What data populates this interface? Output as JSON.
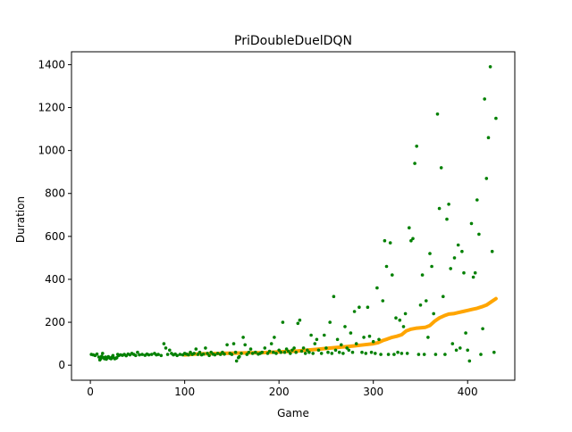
{
  "chart_data": {
    "type": "scatter",
    "title": "PriDoubleDuelDQN",
    "xlabel": "Game",
    "ylabel": "Duration",
    "xlim": [
      -20,
      450
    ],
    "ylim": [
      -70,
      1460
    ],
    "xticks": [
      0,
      100,
      200,
      300,
      400
    ],
    "yticks": [
      0,
      200,
      400,
      600,
      800,
      1000,
      1200,
      1400
    ],
    "grid": false,
    "legend": "none",
    "colors": {
      "durations": "#008000",
      "moving_average": "#ffa500"
    },
    "series": [
      {
        "kind": "points",
        "points": [
          [
            1,
            50
          ],
          [
            3,
            48
          ],
          [
            5,
            45
          ],
          [
            7,
            52
          ],
          [
            9,
            38
          ],
          [
            10,
            25
          ],
          [
            11,
            30
          ],
          [
            12,
            42
          ],
          [
            13,
            55
          ],
          [
            14,
            35
          ],
          [
            15,
            30
          ],
          [
            16,
            38
          ],
          [
            17,
            28
          ],
          [
            18,
            34
          ],
          [
            19,
            40
          ],
          [
            20,
            36
          ],
          [
            21,
            32
          ],
          [
            22,
            30
          ],
          [
            23,
            38
          ],
          [
            24,
            45
          ],
          [
            25,
            34
          ],
          [
            26,
            30
          ],
          [
            27,
            32
          ],
          [
            28,
            35
          ],
          [
            29,
            50
          ],
          [
            30,
            45
          ],
          [
            32,
            48
          ],
          [
            34,
            46
          ],
          [
            36,
            50
          ],
          [
            38,
            44
          ],
          [
            40,
            52
          ],
          [
            42,
            48
          ],
          [
            44,
            55
          ],
          [
            46,
            50
          ],
          [
            48,
            45
          ],
          [
            50,
            60
          ],
          [
            52,
            48
          ],
          [
            55,
            50
          ],
          [
            58,
            46
          ],
          [
            60,
            52
          ],
          [
            62,
            48
          ],
          [
            65,
            50
          ],
          [
            68,
            55
          ],
          [
            70,
            48
          ],
          [
            72,
            50
          ],
          [
            75,
            45
          ],
          [
            78,
            100
          ],
          [
            80,
            80
          ],
          [
            82,
            50
          ],
          [
            84,
            70
          ],
          [
            86,
            55
          ],
          [
            88,
            48
          ],
          [
            90,
            52
          ],
          [
            92,
            45
          ],
          [
            95,
            50
          ],
          [
            98,
            48
          ],
          [
            100,
            55
          ],
          [
            102,
            52
          ],
          [
            104,
            48
          ],
          [
            106,
            60
          ],
          [
            108,
            50
          ],
          [
            110,
            55
          ],
          [
            112,
            75
          ],
          [
            114,
            50
          ],
          [
            116,
            60
          ],
          [
            118,
            48
          ],
          [
            120,
            52
          ],
          [
            122,
            80
          ],
          [
            124,
            55
          ],
          [
            126,
            45
          ],
          [
            128,
            60
          ],
          [
            130,
            52
          ],
          [
            132,
            48
          ],
          [
            135,
            55
          ],
          [
            138,
            50
          ],
          [
            140,
            60
          ],
          [
            142,
            52
          ],
          [
            145,
            95
          ],
          [
            148,
            55
          ],
          [
            150,
            50
          ],
          [
            152,
            100
          ],
          [
            154,
            60
          ],
          [
            155,
            20
          ],
          [
            157,
            35
          ],
          [
            158,
            40
          ],
          [
            160,
            55
          ],
          [
            162,
            130
          ],
          [
            164,
            95
          ],
          [
            166,
            50
          ],
          [
            168,
            60
          ],
          [
            170,
            75
          ],
          [
            172,
            55
          ],
          [
            175,
            60
          ],
          [
            178,
            52
          ],
          [
            180,
            55
          ],
          [
            182,
            60
          ],
          [
            185,
            80
          ],
          [
            188,
            55
          ],
          [
            190,
            65
          ],
          [
            192,
            100
          ],
          [
            194,
            60
          ],
          [
            195,
            130
          ],
          [
            197,
            55
          ],
          [
            200,
            70
          ],
          [
            202,
            60
          ],
          [
            204,
            200
          ],
          [
            206,
            60
          ],
          [
            208,
            75
          ],
          [
            210,
            65
          ],
          [
            212,
            55
          ],
          [
            214,
            70
          ],
          [
            216,
            80
          ],
          [
            218,
            60
          ],
          [
            220,
            195
          ],
          [
            222,
            210
          ],
          [
            224,
            65
          ],
          [
            226,
            80
          ],
          [
            228,
            55
          ],
          [
            230,
            70
          ],
          [
            232,
            60
          ],
          [
            234,
            140
          ],
          [
            236,
            55
          ],
          [
            238,
            100
          ],
          [
            240,
            120
          ],
          [
            242,
            70
          ],
          [
            245,
            55
          ],
          [
            248,
            140
          ],
          [
            250,
            80
          ],
          [
            252,
            60
          ],
          [
            254,
            200
          ],
          [
            256,
            55
          ],
          [
            258,
            320
          ],
          [
            260,
            70
          ],
          [
            262,
            120
          ],
          [
            264,
            60
          ],
          [
            266,
            95
          ],
          [
            268,
            55
          ],
          [
            270,
            180
          ],
          [
            272,
            80
          ],
          [
            274,
            70
          ],
          [
            276,
            150
          ],
          [
            278,
            60
          ],
          [
            280,
            250
          ],
          [
            282,
            100
          ],
          [
            285,
            270
          ],
          [
            288,
            60
          ],
          [
            290,
            130
          ],
          [
            292,
            55
          ],
          [
            294,
            270
          ],
          [
            296,
            135
          ],
          [
            298,
            60
          ],
          [
            300,
            110
          ],
          [
            302,
            55
          ],
          [
            304,
            360
          ],
          [
            306,
            120
          ],
          [
            308,
            50
          ],
          [
            310,
            300
          ],
          [
            312,
            580
          ],
          [
            314,
            460
          ],
          [
            316,
            50
          ],
          [
            318,
            570
          ],
          [
            320,
            420
          ],
          [
            322,
            50
          ],
          [
            324,
            220
          ],
          [
            326,
            60
          ],
          [
            328,
            210
          ],
          [
            330,
            55
          ],
          [
            332,
            180
          ],
          [
            334,
            240
          ],
          [
            336,
            55
          ],
          [
            338,
            640
          ],
          [
            340,
            580
          ],
          [
            342,
            590
          ],
          [
            344,
            940
          ],
          [
            346,
            1020
          ],
          [
            348,
            50
          ],
          [
            350,
            280
          ],
          [
            352,
            420
          ],
          [
            354,
            50
          ],
          [
            356,
            300
          ],
          [
            358,
            130
          ],
          [
            360,
            520
          ],
          [
            362,
            460
          ],
          [
            364,
            240
          ],
          [
            366,
            50
          ],
          [
            368,
            1170
          ],
          [
            370,
            730
          ],
          [
            372,
            920
          ],
          [
            374,
            320
          ],
          [
            376,
            50
          ],
          [
            378,
            680
          ],
          [
            380,
            750
          ],
          [
            382,
            450
          ],
          [
            384,
            100
          ],
          [
            386,
            500
          ],
          [
            388,
            70
          ],
          [
            390,
            560
          ],
          [
            392,
            80
          ],
          [
            394,
            530
          ],
          [
            396,
            430
          ],
          [
            398,
            150
          ],
          [
            400,
            70
          ],
          [
            402,
            20
          ],
          [
            404,
            660
          ],
          [
            406,
            410
          ],
          [
            408,
            430
          ],
          [
            410,
            770
          ],
          [
            412,
            610
          ],
          [
            414,
            50
          ],
          [
            416,
            170
          ],
          [
            418,
            1240
          ],
          [
            420,
            870
          ],
          [
            422,
            1060
          ],
          [
            424,
            1390
          ],
          [
            426,
            530
          ],
          [
            428,
            60
          ],
          [
            430,
            1150
          ]
        ]
      },
      {
        "kind": "line",
        "points": [
          [
            100,
            48
          ],
          [
            110,
            52
          ],
          [
            120,
            53
          ],
          [
            130,
            54
          ],
          [
            140,
            55
          ],
          [
            150,
            56
          ],
          [
            160,
            57
          ],
          [
            170,
            58
          ],
          [
            180,
            58
          ],
          [
            190,
            60
          ],
          [
            200,
            62
          ],
          [
            210,
            64
          ],
          [
            220,
            66
          ],
          [
            230,
            70
          ],
          [
            240,
            74
          ],
          [
            250,
            78
          ],
          [
            260,
            82
          ],
          [
            270,
            86
          ],
          [
            280,
            90
          ],
          [
            290,
            95
          ],
          [
            300,
            100
          ],
          [
            305,
            105
          ],
          [
            310,
            115
          ],
          [
            315,
            122
          ],
          [
            320,
            130
          ],
          [
            325,
            135
          ],
          [
            330,
            142
          ],
          [
            335,
            160
          ],
          [
            340,
            168
          ],
          [
            345,
            172
          ],
          [
            350,
            174
          ],
          [
            355,
            176
          ],
          [
            360,
            185
          ],
          [
            365,
            205
          ],
          [
            370,
            220
          ],
          [
            375,
            230
          ],
          [
            380,
            238
          ],
          [
            385,
            240
          ],
          [
            390,
            245
          ],
          [
            395,
            250
          ],
          [
            400,
            255
          ],
          [
            405,
            260
          ],
          [
            410,
            265
          ],
          [
            415,
            272
          ],
          [
            420,
            280
          ],
          [
            425,
            295
          ],
          [
            430,
            310
          ]
        ]
      }
    ]
  }
}
